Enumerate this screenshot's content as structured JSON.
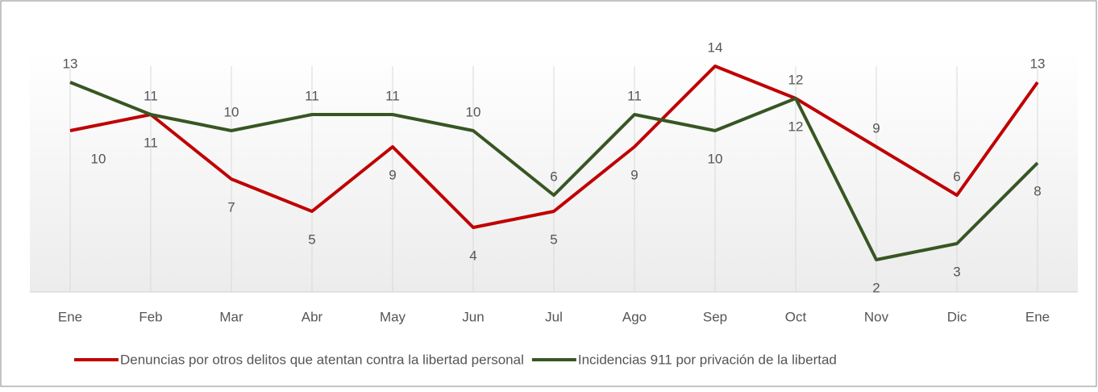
{
  "chart_data": {
    "type": "line",
    "categories": [
      "Ene",
      "Feb",
      "Mar",
      "Abr",
      "May",
      "Jun",
      "Jul",
      "Ago",
      "Sep",
      "Oct",
      "Nov",
      "Dic",
      "Ene"
    ],
    "series": [
      {
        "name": "Denuncias por otros delitos que atentan contra la libertad personal",
        "color": "#c00000",
        "values": [
          10,
          11,
          7,
          5,
          9,
          4,
          5,
          9,
          14,
          12,
          9,
          6,
          13
        ]
      },
      {
        "name": "Incidencias 911 por privación de la libertad",
        "color": "#375623",
        "values": [
          13,
          11,
          10,
          11,
          11,
          10,
          6,
          11,
          10,
          12,
          2,
          3,
          8
        ]
      }
    ],
    "ylim": [
      0,
      15
    ],
    "grid": true,
    "legend": "bottom"
  }
}
